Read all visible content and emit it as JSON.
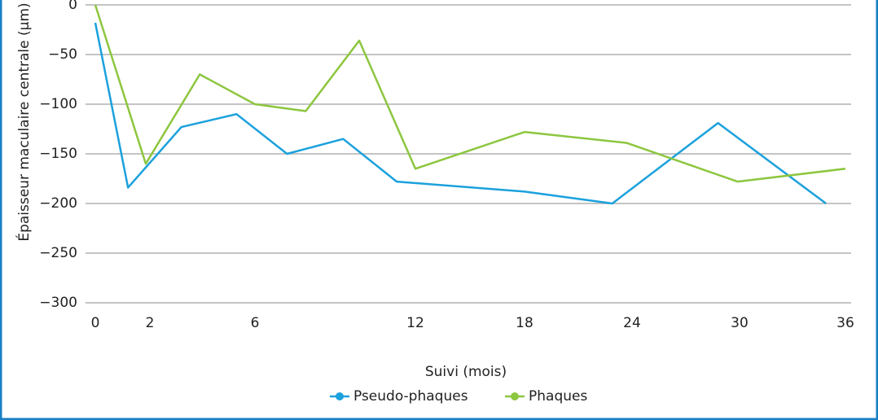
{
  "chart_data": {
    "type": "line",
    "ylabel": "Épaisseur maculaire centrale (µm)",
    "xlabel": "Suivi (mois)",
    "xlim": [
      0,
      36
    ],
    "xticks": [
      0,
      2,
      6,
      12,
      18,
      24,
      30,
      36
    ],
    "ylim": [
      -300,
      0
    ],
    "yticks": [
      {
        "value": 0,
        "label": "0"
      },
      {
        "value": -50,
        "label": "−50"
      },
      {
        "value": -100,
        "label": "−100"
      },
      {
        "value": -150,
        "label": "−150"
      },
      {
        "value": -200,
        "label": "−200"
      },
      {
        "value": -250,
        "label": "−250"
      },
      {
        "value": -300,
        "label": "−300"
      }
    ],
    "grid": true,
    "legend": "bottom",
    "series": [
      {
        "name": "Pseudo-phaques",
        "color": "#1ba1dc",
        "x": [
          0,
          1.2,
          3.2,
          5.3,
          7.2,
          9.3,
          11.3,
          18,
          22.9,
          28.8,
          34.9
        ],
        "values": [
          -18,
          -184,
          -123,
          -110,
          -150,
          -135,
          -178,
          -188,
          -200,
          -119,
          -200
        ]
      },
      {
        "name": "Phaques",
        "color": "#8dc63f",
        "x": [
          0,
          1.85,
          3.9,
          6,
          7.9,
          9.9,
          12,
          18,
          23.7,
          29.9,
          36
        ],
        "values": [
          0,
          -160,
          -70,
          -100,
          -107,
          -36,
          -165,
          -128,
          -139,
          -178,
          -165
        ]
      }
    ]
  }
}
